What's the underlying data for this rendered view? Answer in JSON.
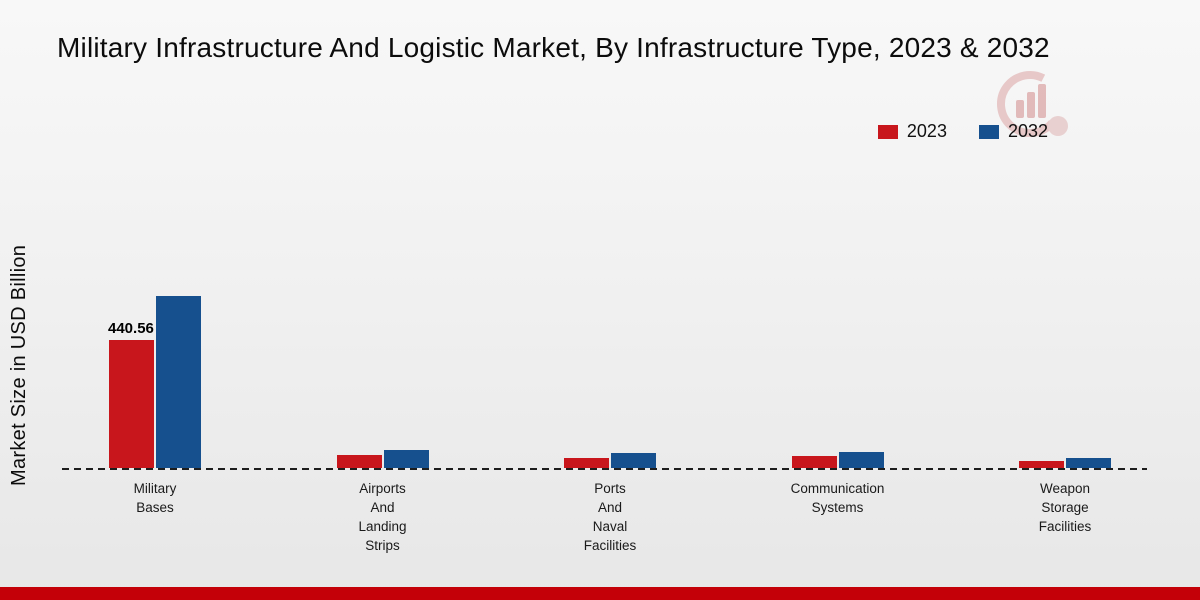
{
  "page": {
    "title": "Military Infrastructure And Logistic Market, By Infrastructure Type, 2023 & 2032",
    "y_axis_label": "Market Size in USD Billion"
  },
  "icons": {
    "brand_logo": "bar-chart-watermark",
    "logo_color": "#d99a9a"
  },
  "footer": {
    "accent_bar_color": "#c40008"
  },
  "chart_data": {
    "type": "bar",
    "title": "Military Infrastructure And Logistic Market, By Infrastructure Type, 2023 & 2032",
    "xlabel": "",
    "ylabel": "Market Size in USD Billion",
    "categories": [
      "Military Bases",
      "Airports And Landing Strips",
      "Ports And Naval Facilities",
      "Communication Systems",
      "Weapon Storage Facilities"
    ],
    "category_label_lines": [
      [
        "Military",
        "Bases"
      ],
      [
        "Airports",
        "And",
        "Landing",
        "Strips"
      ],
      [
        "Ports",
        "And",
        "Naval",
        "Facilities"
      ],
      [
        "Communication",
        "Systems"
      ],
      [
        "Weapon",
        "Storage",
        "Facilities"
      ]
    ],
    "series": [
      {
        "name": "2023",
        "color": "#c8161c",
        "values": [
          440.56,
          45,
          36,
          40,
          24
        ]
      },
      {
        "name": "2032",
        "color": "#16508e",
        "values": [
          595,
          62,
          52,
          55,
          35
        ]
      }
    ],
    "annotations": [
      {
        "series_index": 0,
        "category_index": 0,
        "text": "440.56"
      }
    ],
    "ylim": [
      0,
      1000
    ],
    "grid": false,
    "legend_position": "top-right",
    "x_axis_style": "dashed-baseline"
  }
}
